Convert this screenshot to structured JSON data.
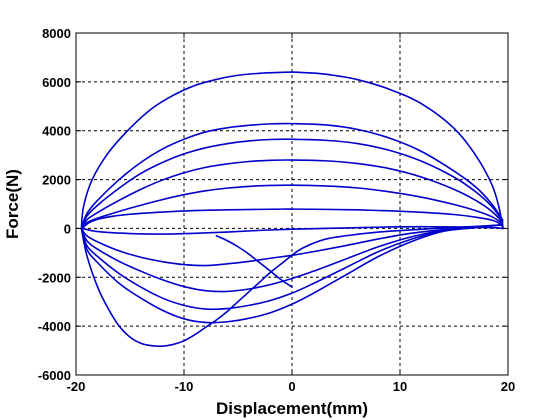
{
  "chart_data": {
    "type": "line",
    "title": "",
    "xlabel": "Displacement(mm)",
    "ylabel": "Force(N)",
    "xlim": [
      -20,
      20
    ],
    "ylim": [
      -6000,
      8000
    ],
    "xticks": [
      -20,
      -10,
      0,
      10,
      20
    ],
    "yticks": [
      -6000,
      -4000,
      -2000,
      0,
      2000,
      4000,
      6000,
      8000
    ],
    "xtick_labels": [
      "-20",
      "-10",
      "0",
      "10",
      "20"
    ],
    "ytick_labels": [
      "-6000",
      "-4000",
      "-2000",
      "0",
      "2000",
      "4000",
      "6000",
      "8000"
    ],
    "grid": true,
    "line_color": "#0000cc",
    "series": [
      {
        "x": [
          -19.4,
          -19.2,
          -18.5,
          -17,
          -15,
          -12,
          -9,
          -6,
          -3,
          -1,
          0.5,
          3,
          6,
          9,
          12,
          15,
          17,
          18.5,
          19.4,
          19.5,
          19.1,
          17.5,
          15,
          12,
          9,
          6,
          3,
          0,
          -3,
          -6,
          -9,
          -12,
          -15,
          -18,
          -19.4
        ],
        "y": [
          0,
          100,
          300,
          470,
          580,
          670,
          730,
          760,
          780,
          790,
          790,
          780,
          760,
          720,
          660,
          570,
          460,
          340,
          150,
          0,
          20,
          40,
          60,
          70,
          60,
          30,
          0,
          -30,
          -80,
          -150,
          -200,
          -230,
          -210,
          -130,
          0
        ]
      },
      {
        "x": [
          -19.5,
          -19,
          -18,
          -16,
          -14,
          -12,
          -10,
          -8,
          -6,
          -4,
          -2,
          0,
          3,
          6,
          9,
          12,
          15,
          17,
          18.5,
          19.5
        ],
        "y": [
          0,
          230,
          420,
          700,
          950,
          1180,
          1380,
          1540,
          1650,
          1720,
          1760,
          1770,
          1740,
          1660,
          1500,
          1280,
          980,
          730,
          480,
          200
        ]
      },
      {
        "x": [
          -19.5,
          -19,
          -18,
          -16,
          -14,
          -12,
          -10,
          -8,
          -6,
          -4,
          -2,
          0,
          3,
          6,
          9,
          12,
          15,
          17,
          18.5,
          19.5
        ],
        "y": [
          0,
          350,
          650,
          1150,
          1600,
          1980,
          2280,
          2500,
          2640,
          2740,
          2790,
          2800,
          2770,
          2660,
          2450,
          2100,
          1600,
          1150,
          700,
          250
        ]
      },
      {
        "x": [
          -19.5,
          -19,
          -18,
          -16,
          -14,
          -12,
          -10,
          -8,
          -6,
          -4,
          -2,
          0,
          3,
          6,
          9,
          12,
          15,
          17,
          18.5,
          19.5
        ],
        "y": [
          0,
          500,
          950,
          1650,
          2250,
          2700,
          3050,
          3300,
          3470,
          3580,
          3640,
          3650,
          3610,
          3480,
          3200,
          2750,
          2100,
          1500,
          900,
          300
        ]
      },
      {
        "x": [
          -19.5,
          -19,
          -18,
          -16,
          -14,
          -12,
          -10,
          -8,
          -6,
          -4,
          -2,
          0,
          3,
          6,
          9,
          12,
          15,
          17,
          18.5,
          19.5
        ],
        "y": [
          0,
          600,
          1150,
          2000,
          2700,
          3250,
          3650,
          3950,
          4120,
          4220,
          4280,
          4290,
          4240,
          4060,
          3700,
          3150,
          2350,
          1700,
          1000,
          350
        ]
      },
      {
        "x": [
          -19.5,
          -19.3,
          -18.5,
          -17,
          -15,
          -13,
          -11,
          -9,
          -7,
          -5,
          -3,
          -1.5,
          0,
          1,
          3,
          6,
          9,
          12,
          15,
          17,
          18.5,
          19.2,
          19.5
        ],
        "y": [
          0,
          900,
          2000,
          3100,
          4100,
          4900,
          5450,
          5850,
          6100,
          6270,
          6350,
          6380,
          6400,
          6380,
          6320,
          6100,
          5700,
          5100,
          4100,
          3000,
          1800,
          800,
          0
        ]
      },
      {
        "x": [
          19.5,
          17,
          14,
          11,
          8,
          5,
          2,
          0,
          -2,
          -4,
          -6,
          -8,
          -10,
          -12,
          -14,
          -16,
          -18,
          -19,
          -19.5
        ],
        "y": [
          150,
          60,
          -50,
          -200,
          -430,
          -700,
          -950,
          -1100,
          -1220,
          -1350,
          -1450,
          -1520,
          -1480,
          -1360,
          -1180,
          -920,
          -550,
          -300,
          0
        ]
      },
      {
        "x": [
          19.5,
          17,
          14,
          11,
          8,
          5,
          2,
          0,
          -2,
          -4,
          -6,
          -8,
          -10,
          -12,
          -14,
          -16,
          -18,
          -19,
          -19.5
        ],
        "y": [
          150,
          50,
          -80,
          -350,
          -750,
          -1250,
          -1750,
          -2050,
          -2300,
          -2480,
          -2580,
          -2550,
          -2380,
          -2100,
          -1750,
          -1350,
          -850,
          -500,
          0
        ]
      },
      {
        "x": [
          19.5,
          17,
          14,
          11,
          8,
          5,
          2,
          0,
          -2,
          -4,
          -6,
          -8,
          -10,
          -12,
          -14,
          -16,
          -18,
          -19,
          -19.5
        ],
        "y": [
          150,
          40,
          -100,
          -450,
          -950,
          -1600,
          -2250,
          -2650,
          -2950,
          -3150,
          -3280,
          -3300,
          -3150,
          -2850,
          -2400,
          -1850,
          -1150,
          -700,
          0
        ]
      },
      {
        "x": [
          19.5,
          17,
          14,
          11,
          8,
          5,
          2,
          0,
          -2,
          -4,
          -6,
          -8,
          -10,
          -12,
          -14,
          -16,
          -18,
          -19,
          -19.5
        ],
        "y": [
          150,
          30,
          -120,
          -550,
          -1150,
          -1900,
          -2650,
          -3100,
          -3450,
          -3680,
          -3820,
          -3850,
          -3700,
          -3350,
          -2850,
          -2250,
          -1400,
          -850,
          0
        ]
      },
      {
        "x": [
          19.5,
          17,
          14,
          11,
          8,
          5,
          3,
          1,
          0,
          -1,
          -2,
          -3,
          -4,
          -5,
          -6,
          -7,
          -8,
          -9,
          -10,
          -11,
          -12,
          -13,
          -14,
          -15,
          -16,
          -17,
          -18,
          -19,
          -19.5
        ],
        "y": [
          150,
          80,
          20,
          -60,
          -150,
          -300,
          -450,
          -800,
          -1100,
          -1450,
          -1800,
          -2200,
          -2600,
          -3000,
          -3400,
          -3750,
          -4050,
          -4350,
          -4600,
          -4750,
          -4820,
          -4800,
          -4700,
          -4450,
          -4000,
          -3300,
          -2400,
          -1100,
          0
        ]
      },
      {
        "x": [
          0,
          -1,
          -2,
          -3,
          -4,
          -5,
          -6,
          -7
        ],
        "y": [
          -2400,
          -2100,
          -1750,
          -1400,
          -1050,
          -750,
          -500,
          -300
        ]
      }
    ]
  }
}
